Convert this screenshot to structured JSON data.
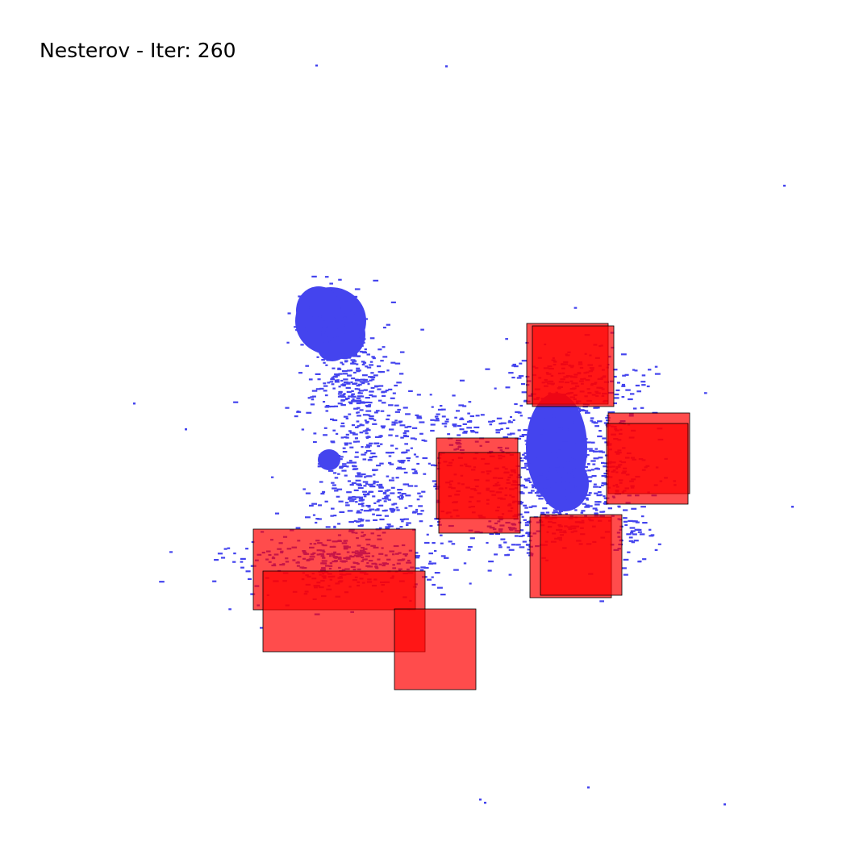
{
  "title": "Nesterov - Iter: 260",
  "colors": {
    "background": "#ffffff",
    "cell": "#4444ee",
    "macro_fill": "#ff0000",
    "macro_stroke": "#000000"
  }
}
